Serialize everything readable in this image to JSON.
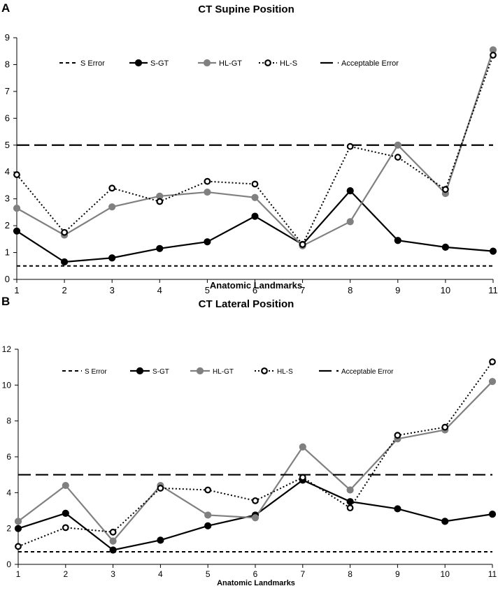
{
  "chart_data": [
    {
      "panel_label": "A",
      "type": "line",
      "title": "CT Supine Position",
      "xlabel": "Anatomic Landmarks",
      "ylabel": "",
      "categories": [
        "1",
        "2",
        "3",
        "4",
        "5",
        "6",
        "7",
        "8",
        "9",
        "10",
        "11"
      ],
      "ylim": [
        0,
        9
      ],
      "yticks": [
        0,
        1,
        2,
        3,
        4,
        5,
        6,
        7,
        8,
        9
      ],
      "grid": false,
      "legend_position": "top",
      "series": [
        {
          "name": "S Error",
          "style": "short-dash",
          "values": [
            0.5,
            0.5,
            0.5,
            0.5,
            0.5,
            0.5,
            0.5,
            0.5,
            0.5,
            0.5,
            0.5
          ]
        },
        {
          "name": "S-GT",
          "style": "solid-black",
          "values": [
            1.8,
            0.65,
            0.8,
            1.15,
            1.4,
            2.35,
            1.3,
            3.3,
            1.45,
            1.2,
            1.05
          ]
        },
        {
          "name": "HL-GT",
          "style": "solid-gray",
          "values": [
            2.65,
            1.65,
            2.7,
            3.1,
            3.25,
            3.05,
            1.25,
            2.15,
            5.0,
            3.2,
            8.55
          ]
        },
        {
          "name": "HL-S",
          "style": "dotted-open",
          "values": [
            3.9,
            1.75,
            3.4,
            2.9,
            3.65,
            3.55,
            1.3,
            4.95,
            4.55,
            3.35,
            8.35
          ]
        },
        {
          "name": "Acceptable Error",
          "style": "long-dash",
          "values": [
            5,
            5,
            5,
            5,
            5,
            5,
            5,
            5,
            5,
            5,
            5
          ]
        }
      ]
    },
    {
      "panel_label": "B",
      "type": "line",
      "title": "CT Lateral Position",
      "xlabel": "Anatomic Landmarks",
      "ylabel": "",
      "categories": [
        "1",
        "2",
        "3",
        "4",
        "5",
        "6",
        "7",
        "8",
        "9",
        "10",
        "11"
      ],
      "ylim": [
        0,
        12
      ],
      "yticks": [
        0,
        2,
        4,
        6,
        8,
        10,
        12
      ],
      "grid": false,
      "legend_position": "top",
      "series": [
        {
          "name": "S Error",
          "style": "short-dash",
          "values": [
            0.7,
            0.7,
            0.7,
            0.7,
            0.7,
            0.7,
            0.7,
            0.7,
            0.7,
            0.7,
            0.7
          ]
        },
        {
          "name": "S-GT",
          "style": "solid-black",
          "values": [
            2.0,
            2.85,
            0.8,
            1.35,
            2.15,
            2.75,
            4.7,
            3.5,
            3.1,
            2.4,
            2.8
          ]
        },
        {
          "name": "HL-GT",
          "style": "solid-gray",
          "values": [
            2.4,
            4.4,
            1.3,
            4.4,
            2.75,
            2.6,
            6.55,
            4.15,
            7.0,
            7.5,
            10.2
          ]
        },
        {
          "name": "HL-S",
          "style": "dotted-open",
          "values": [
            1.0,
            2.05,
            1.8,
            4.25,
            4.15,
            3.55,
            4.85,
            3.15,
            7.2,
            7.65,
            11.3
          ]
        },
        {
          "name": "Acceptable Error",
          "style": "long-dash",
          "values": [
            5,
            5,
            5,
            5,
            5,
            5,
            5,
            5,
            5,
            5,
            5
          ]
        }
      ]
    }
  ]
}
